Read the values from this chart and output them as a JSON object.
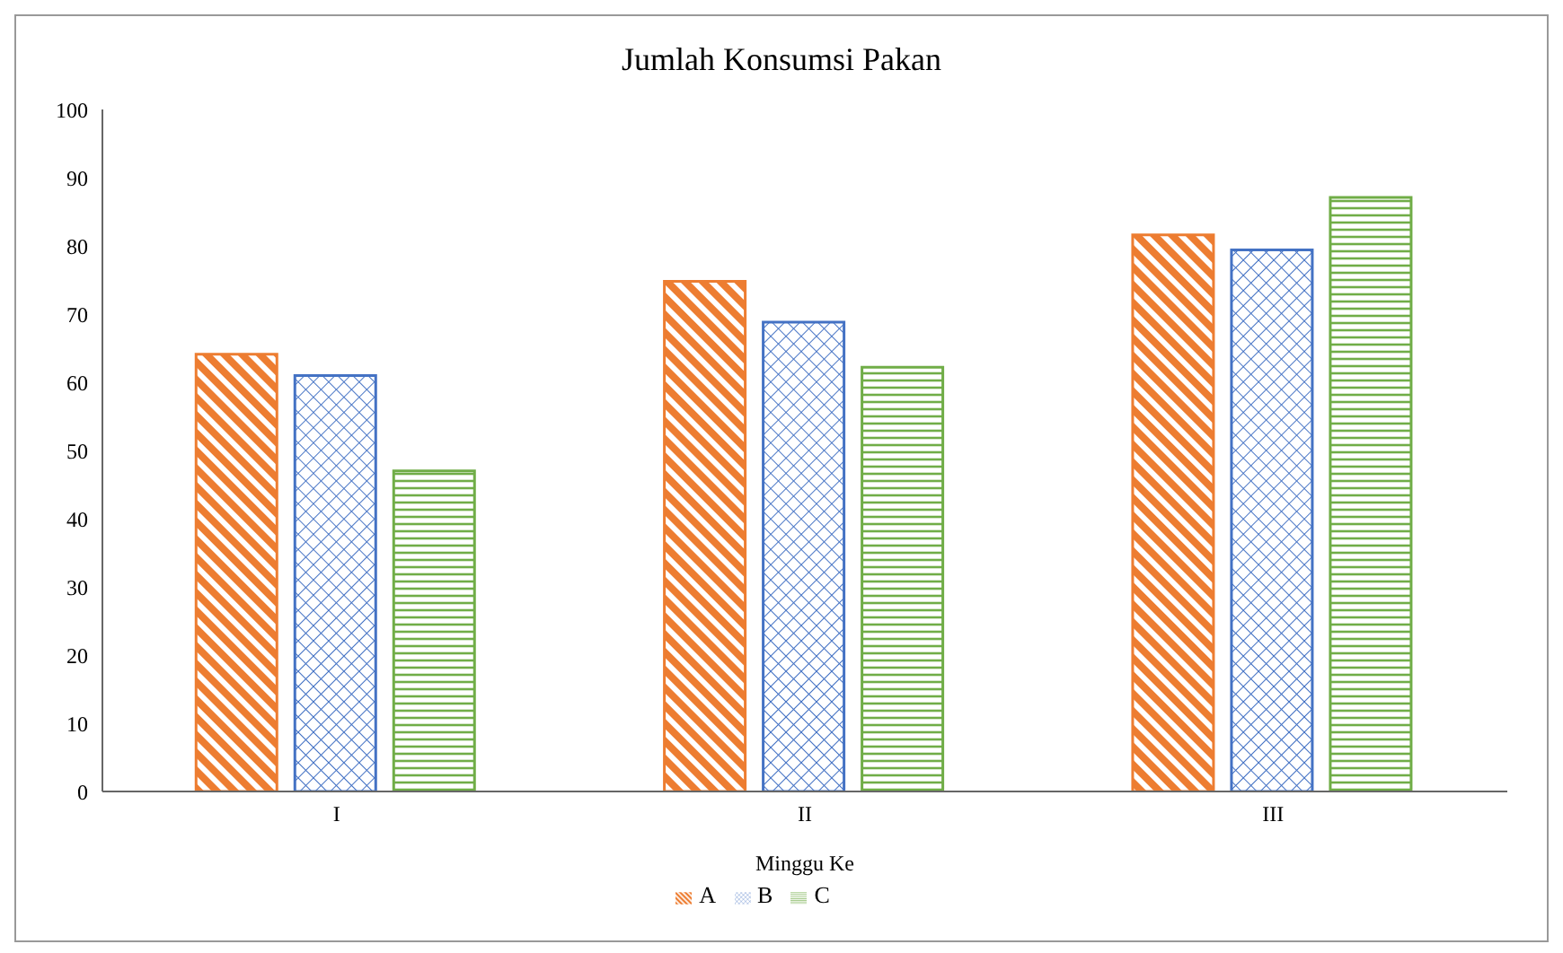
{
  "chart_data": {
    "type": "bar",
    "title": "Jumlah Konsumsi Pakan",
    "xlabel": "Minggu Ke",
    "categories": [
      "I",
      "II",
      "III"
    ],
    "series": [
      {
        "name": "A",
        "color": "#ed7d31",
        "values": [
          64.1,
          74.8,
          81.6
        ]
      },
      {
        "name": "B",
        "color": "#4472c4",
        "values": [
          61.0,
          68.8,
          79.4
        ]
      },
      {
        "name": "C",
        "color": "#70ad47",
        "values": [
          47.0,
          62.2,
          87.1
        ]
      }
    ],
    "ylim": [
      0,
      100
    ],
    "yticks": [
      0,
      10,
      20,
      30,
      40,
      50,
      60,
      70,
      80,
      90,
      100
    ],
    "grid": false,
    "legend": "bottom"
  }
}
